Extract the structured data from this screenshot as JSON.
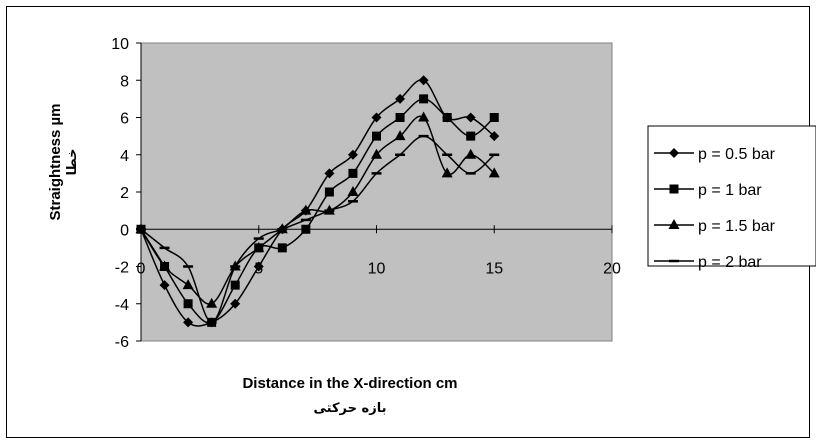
{
  "chart_data": {
    "type": "line",
    "xlabel": "Distance in the X-direction cm",
    "xlabel_sub": "بازه حرکتی",
    "ylabel": "Straightness µm",
    "ylabel_sub": "خطا",
    "xlim": [
      0,
      20
    ],
    "ylim": [
      -6,
      10
    ],
    "x_ticks": [
      0,
      5,
      10,
      15,
      20
    ],
    "y_ticks": [
      -6,
      -4,
      -2,
      0,
      2,
      4,
      6,
      8,
      10
    ],
    "plot_background": "#c0c0c0",
    "grid": false,
    "legend_position": "right",
    "series": [
      {
        "name": "p = 0.5 bar",
        "marker": "diamond",
        "x": [
          0,
          1,
          2,
          3,
          4,
          5,
          6,
          7,
          8,
          9,
          10,
          11,
          12,
          13,
          14,
          15
        ],
        "y": [
          0,
          -3,
          -5,
          -5,
          -4,
          -2,
          0,
          1,
          3,
          4,
          6,
          7,
          8,
          6,
          6,
          5
        ]
      },
      {
        "name": "p = 1 bar",
        "marker": "square",
        "x": [
          0,
          1,
          2,
          3,
          4,
          5,
          6,
          7,
          8,
          9,
          10,
          11,
          12,
          13,
          14,
          15
        ],
        "y": [
          0,
          -2,
          -4,
          -5,
          -3,
          -1,
          -1,
          0,
          2,
          3,
          5,
          6,
          7,
          6,
          5,
          6
        ]
      },
      {
        "name": "p = 1.5 bar",
        "marker": "triangle",
        "x": [
          0,
          1,
          2,
          3,
          4,
          5,
          6,
          7,
          8,
          9,
          10,
          11,
          12,
          13,
          14,
          15
        ],
        "y": [
          0,
          -2,
          -3,
          -4,
          -2,
          -1,
          0,
          1,
          1,
          2,
          4,
          5,
          6,
          3,
          4,
          3
        ]
      },
      {
        "name": "p = 2 bar",
        "marker": "dash",
        "x": [
          0,
          1,
          2,
          3,
          4,
          5,
          6,
          7,
          8,
          9,
          10,
          11,
          12,
          13,
          14,
          15
        ],
        "y": [
          0,
          -1,
          -2,
          -5,
          -2,
          -0.5,
          0,
          0.5,
          1,
          1.5,
          3,
          4,
          5,
          4,
          3,
          4
        ]
      }
    ]
  }
}
